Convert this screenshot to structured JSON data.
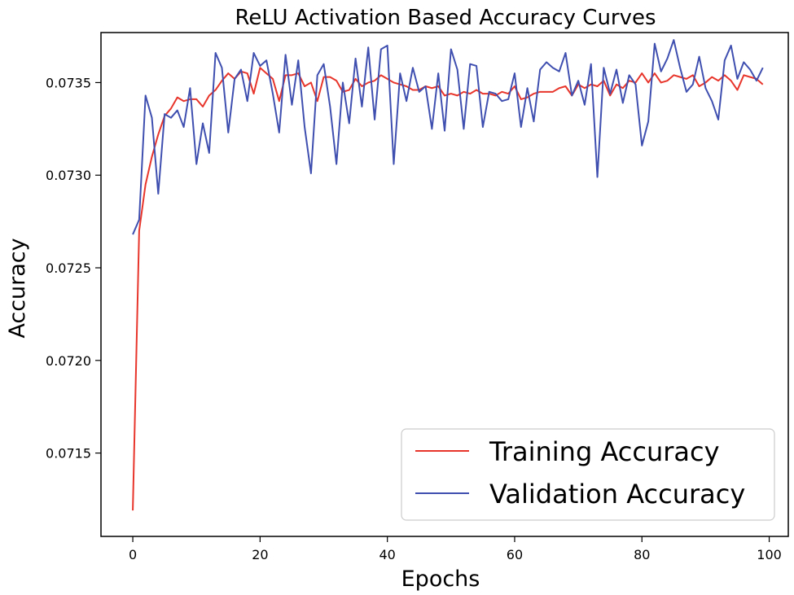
{
  "chart_data": {
    "type": "line",
    "title": "ReLU Activation Based Accuracy Curves",
    "xlabel": "Epochs",
    "ylabel": "Accuracy",
    "xlim": [
      -5,
      103
    ],
    "ylim": [
      0.07105,
      0.07377
    ],
    "xticks": [
      0,
      20,
      40,
      60,
      80,
      100
    ],
    "xtick_labels": [
      "0",
      "20",
      "40",
      "60",
      "80",
      "100"
    ],
    "yticks": [
      0.0715,
      0.072,
      0.0725,
      0.073,
      0.0735
    ],
    "ytick_labels": [
      "0.0715",
      "0.0720",
      "0.0725",
      "0.0730",
      "0.0735"
    ],
    "grid": false,
    "legend_position": "lower-right",
    "series": [
      {
        "name": "Training Accuracy",
        "color": "#e8352b",
        "x": [
          0,
          1,
          2,
          3,
          4,
          5,
          6,
          7,
          8,
          9,
          10,
          11,
          12,
          13,
          14,
          15,
          16,
          17,
          18,
          19,
          20,
          21,
          22,
          23,
          24,
          25,
          26,
          27,
          28,
          29,
          30,
          31,
          32,
          33,
          34,
          35,
          36,
          37,
          38,
          39,
          40,
          41,
          42,
          43,
          44,
          45,
          46,
          47,
          48,
          49,
          50,
          51,
          52,
          53,
          54,
          55,
          56,
          57,
          58,
          59,
          60,
          61,
          62,
          63,
          64,
          65,
          66,
          67,
          68,
          69,
          70,
          71,
          72,
          73,
          74,
          75,
          76,
          77,
          78,
          79,
          80,
          81,
          82,
          83,
          84,
          85,
          86,
          87,
          88,
          89,
          90,
          91,
          92,
          93,
          94,
          95,
          96,
          97,
          98,
          99
        ],
        "y": [
          0.07119,
          0.0727,
          0.07295,
          0.0731,
          0.07322,
          0.07332,
          0.07336,
          0.07342,
          0.0734,
          0.07341,
          0.07341,
          0.07337,
          0.07343,
          0.07346,
          0.07351,
          0.07355,
          0.07352,
          0.07356,
          0.07355,
          0.07344,
          0.07358,
          0.07355,
          0.07352,
          0.0734,
          0.07354,
          0.07354,
          0.07355,
          0.07348,
          0.0735,
          0.0734,
          0.07353,
          0.07353,
          0.07351,
          0.07345,
          0.07346,
          0.07352,
          0.07348,
          0.0735,
          0.07351,
          0.07354,
          0.07352,
          0.0735,
          0.07349,
          0.07348,
          0.07346,
          0.07346,
          0.07348,
          0.07347,
          0.07348,
          0.07343,
          0.07344,
          0.07343,
          0.07345,
          0.07344,
          0.07346,
          0.07344,
          0.07344,
          0.07343,
          0.07345,
          0.07344,
          0.07348,
          0.07341,
          0.07342,
          0.07344,
          0.07345,
          0.07345,
          0.07345,
          0.07347,
          0.07348,
          0.07343,
          0.07349,
          0.07347,
          0.07349,
          0.07348,
          0.07351,
          0.07343,
          0.07349,
          0.07347,
          0.07351,
          0.0735,
          0.07355,
          0.0735,
          0.07355,
          0.0735,
          0.07351,
          0.07354,
          0.07353,
          0.07352,
          0.07354,
          0.07348,
          0.0735,
          0.07353,
          0.07351,
          0.07354,
          0.07351,
          0.07346,
          0.07354,
          0.07353,
          0.07352,
          0.07349
        ]
      },
      {
        "name": "Validation Accuracy",
        "color": "#3f4fb0",
        "x": [
          0,
          1,
          2,
          3,
          4,
          5,
          6,
          7,
          8,
          9,
          10,
          11,
          12,
          13,
          14,
          15,
          16,
          17,
          18,
          19,
          20,
          21,
          22,
          23,
          24,
          25,
          26,
          27,
          28,
          29,
          30,
          31,
          32,
          33,
          34,
          35,
          36,
          37,
          38,
          39,
          40,
          41,
          42,
          43,
          44,
          45,
          46,
          47,
          48,
          49,
          50,
          51,
          52,
          53,
          54,
          55,
          56,
          57,
          58,
          59,
          60,
          61,
          62,
          63,
          64,
          65,
          66,
          67,
          68,
          69,
          70,
          71,
          72,
          73,
          74,
          75,
          76,
          77,
          78,
          79,
          80,
          81,
          82,
          83,
          84,
          85,
          86,
          87,
          88,
          89,
          90,
          91,
          92,
          93,
          94,
          95,
          96,
          97,
          98,
          99
        ],
        "y": [
          0.07268,
          0.07276,
          0.07343,
          0.07331,
          0.0729,
          0.07333,
          0.07331,
          0.07335,
          0.07326,
          0.07347,
          0.07306,
          0.07328,
          0.07312,
          0.07366,
          0.07358,
          0.07323,
          0.07352,
          0.07357,
          0.0734,
          0.07366,
          0.07359,
          0.07362,
          0.07344,
          0.07323,
          0.07365,
          0.07338,
          0.07362,
          0.07326,
          0.07301,
          0.07354,
          0.0736,
          0.07337,
          0.07306,
          0.0735,
          0.07328,
          0.07363,
          0.07337,
          0.07369,
          0.0733,
          0.07368,
          0.0737,
          0.07306,
          0.07355,
          0.0734,
          0.07358,
          0.07345,
          0.07348,
          0.07325,
          0.07355,
          0.07324,
          0.07368,
          0.07357,
          0.07325,
          0.0736,
          0.07359,
          0.07326,
          0.07345,
          0.07344,
          0.0734,
          0.07341,
          0.07355,
          0.07326,
          0.07347,
          0.07329,
          0.07357,
          0.07361,
          0.07358,
          0.07356,
          0.07366,
          0.07343,
          0.07351,
          0.07338,
          0.0736,
          0.07299,
          0.07358,
          0.07344,
          0.07357,
          0.07339,
          0.07354,
          0.07349,
          0.07316,
          0.07329,
          0.07371,
          0.07356,
          0.07363,
          0.07373,
          0.07358,
          0.07345,
          0.07349,
          0.07364,
          0.07347,
          0.0734,
          0.0733,
          0.07362,
          0.0737,
          0.07352,
          0.07361,
          0.07357,
          0.07351,
          0.07358
        ]
      }
    ]
  }
}
